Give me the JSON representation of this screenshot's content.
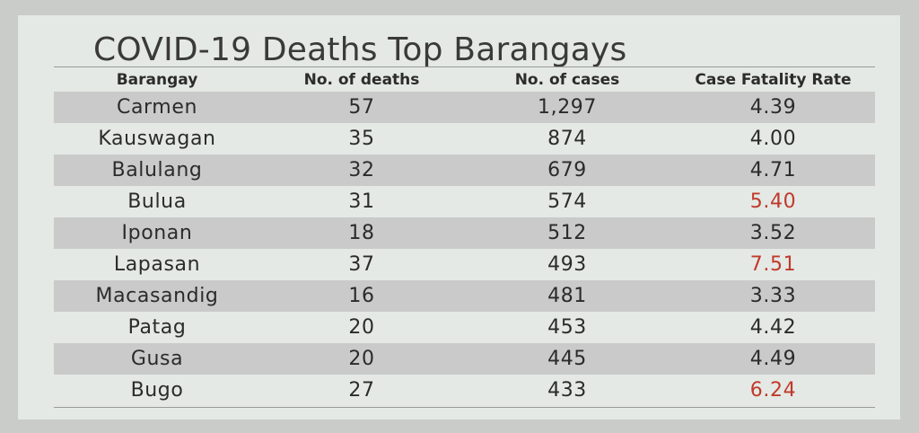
{
  "title": "COVID-19 Deaths Top Barangays",
  "columns": [
    "Barangay",
    "No. of deaths",
    "No. of cases",
    "Case Fatality Rate"
  ],
  "highlight_color": "#c0392b",
  "rows": [
    {
      "barangay": "Carmen",
      "deaths": "57",
      "cases": "1,297",
      "cfr": "4.39",
      "highlight": false
    },
    {
      "barangay": "Kauswagan",
      "deaths": "35",
      "cases": "874",
      "cfr": "4.00",
      "highlight": false
    },
    {
      "barangay": "Balulang",
      "deaths": "32",
      "cases": "679",
      "cfr": "4.71",
      "highlight": false
    },
    {
      "barangay": "Bulua",
      "deaths": "31",
      "cases": "574",
      "cfr": "5.40",
      "highlight": true
    },
    {
      "barangay": "Iponan",
      "deaths": "18",
      "cases": "512",
      "cfr": "3.52",
      "highlight": false
    },
    {
      "barangay": "Lapasan",
      "deaths": "37",
      "cases": "493",
      "cfr": "7.51",
      "highlight": true
    },
    {
      "barangay": "Macasandig",
      "deaths": "16",
      "cases": "481",
      "cfr": "3.33",
      "highlight": false
    },
    {
      "barangay": "Patag",
      "deaths": "20",
      "cases": "453",
      "cfr": "4.42",
      "highlight": false
    },
    {
      "barangay": "Gusa",
      "deaths": "20",
      "cases": "445",
      "cfr": "4.49",
      "highlight": false
    },
    {
      "barangay": "Bugo",
      "deaths": "27",
      "cases": "433",
      "cfr": "6.24",
      "highlight": true
    }
  ]
}
